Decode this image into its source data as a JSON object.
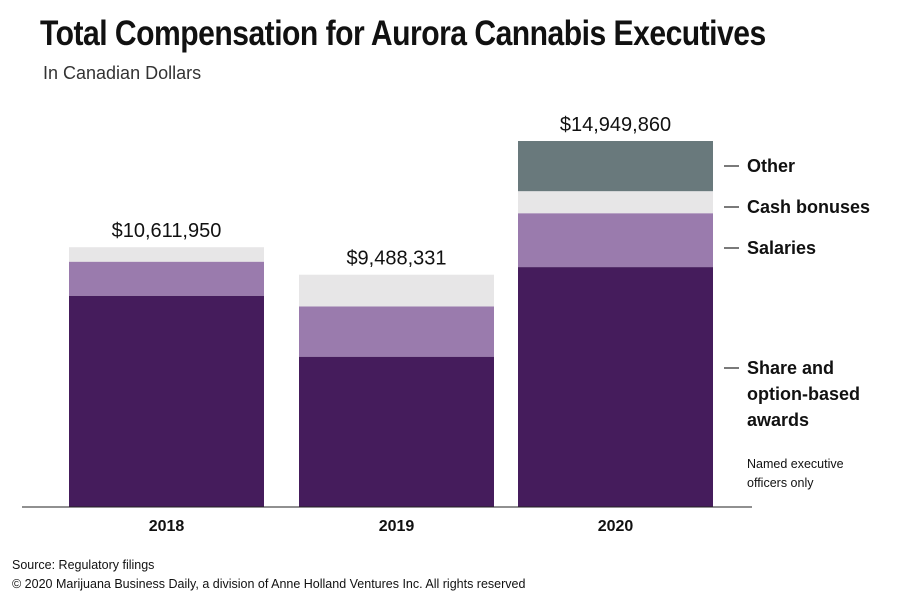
{
  "header": {
    "title": "Total Compensation for Aurora Cannabis Executives",
    "subtitle": "In Canadian Dollars"
  },
  "footer": {
    "source": "Source: Regulatory filings",
    "copyright": "© 2020 Marijuana Business Daily, a division of Anne Holland Ventures Inc. All rights reserved"
  },
  "chart_data": {
    "type": "bar",
    "stacked": true,
    "title": "Total Compensation for Aurora Cannabis Executives",
    "subtitle": "In Canadian Dollars",
    "categories": [
      "2018",
      "2019",
      "2020"
    ],
    "ylim": [
      0,
      14949860
    ],
    "grid": false,
    "legend_position": "right",
    "totals": [
      10611950,
      9488331,
      14949860
    ],
    "total_labels": [
      "$10,611,950",
      "$9,488,331",
      "$14,949,860"
    ],
    "series": [
      {
        "name": "Share and option-based awards",
        "legend_text": [
          "Share and",
          "option-based",
          "awards"
        ],
        "color": "#451c5c",
        "values": [
          8630000,
          6140000,
          9800000
        ]
      },
      {
        "name": "Salaries",
        "legend_text": [
          "Salaries"
        ],
        "color": "#9a7bad",
        "values": [
          1390000,
          2050000,
          2200000
        ]
      },
      {
        "name": "Cash bonuses",
        "legend_text": [
          "Cash bonuses"
        ],
        "color": "#e7e6e7",
        "values": [
          591950,
          1298331,
          900000
        ]
      },
      {
        "name": "Other",
        "legend_text": [
          "Other"
        ],
        "color": "#69797c",
        "values": [
          0,
          0,
          2049860
        ]
      }
    ],
    "note": [
      "Named executive",
      "officers only"
    ]
  }
}
